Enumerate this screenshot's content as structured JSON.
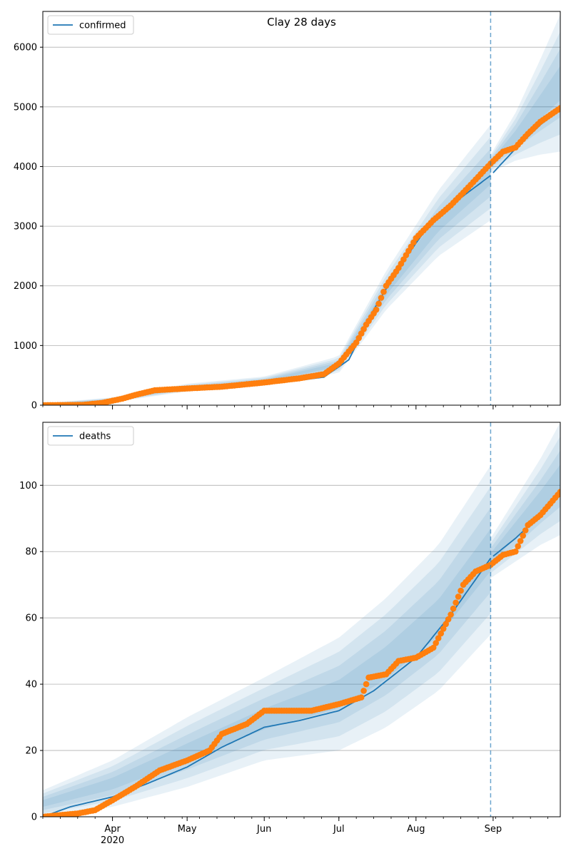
{
  "colors": {
    "model_line": "#1f77b4",
    "observed": "#ff7f0e",
    "band": "#1f77b4",
    "grid": "#b0b0b0",
    "vline": "#1f77b4"
  },
  "chart_data": [
    {
      "type": "line",
      "title": "Clay 28 days",
      "legend": [
        "confirmed"
      ],
      "legend_position": "top-left",
      "x_start": "2020-03-04",
      "x_end": "2020-09-28",
      "forecast_start": "2020-08-31",
      "xticks": [
        {
          "date": "2020-04-01",
          "label": "Apr",
          "sublabel": ""
        },
        {
          "date": "2020-05-01",
          "label": "May",
          "sublabel": ""
        },
        {
          "date": "2020-06-01",
          "label": "Jun",
          "sublabel": ""
        },
        {
          "date": "2020-07-01",
          "label": "Jul",
          "sublabel": ""
        },
        {
          "date": "2020-08-01",
          "label": "Aug",
          "sublabel": ""
        },
        {
          "date": "2020-09-01",
          "label": "Sep",
          "sublabel": ""
        }
      ],
      "show_xtick_labels": false,
      "ylim": [
        0,
        6600
      ],
      "yticks": [
        0,
        1000,
        2000,
        3000,
        4000,
        5000,
        6000
      ],
      "grid": true,
      "series": [
        {
          "name": "confirmed",
          "kind": "model",
          "x": [
            "2020-03-04",
            "2020-03-20",
            "2020-04-01",
            "2020-04-15",
            "2020-05-01",
            "2020-05-20",
            "2020-06-10",
            "2020-06-25",
            "2020-07-05",
            "2020-07-15",
            "2020-07-25",
            "2020-08-05",
            "2020-08-15",
            "2020-08-31",
            "2020-09-10",
            "2020-09-20",
            "2020-09-28"
          ],
          "y": [
            0,
            5,
            80,
            220,
            290,
            330,
            390,
            470,
            760,
            1600,
            2300,
            2950,
            3350,
            3850,
            4300,
            4700,
            4960
          ]
        },
        {
          "name": "observed",
          "kind": "observed",
          "x": [
            "2020-03-04",
            "2020-03-20",
            "2020-03-28",
            "2020-04-05",
            "2020-04-10",
            "2020-04-18",
            "2020-05-01",
            "2020-05-15",
            "2020-06-01",
            "2020-06-15",
            "2020-06-25",
            "2020-07-01",
            "2020-07-08",
            "2020-07-12",
            "2020-07-16",
            "2020-07-20",
            "2020-07-25",
            "2020-08-01",
            "2020-08-08",
            "2020-08-15",
            "2020-08-22",
            "2020-08-31",
            "2020-09-05",
            "2020-09-10",
            "2020-09-15",
            "2020-09-20",
            "2020-09-28"
          ],
          "y": [
            0,
            5,
            40,
            110,
            170,
            250,
            280,
            310,
            380,
            450,
            520,
            700,
            1050,
            1350,
            1600,
            2000,
            2300,
            2800,
            3100,
            3350,
            3650,
            4050,
            4250,
            4320,
            4550,
            4750,
            4980
          ]
        }
      ],
      "bands": [
        {
          "x": [
            "2020-03-04",
            "2020-04-01",
            "2020-05-01",
            "2020-06-01",
            "2020-07-01",
            "2020-07-20",
            "2020-08-10",
            "2020-08-31"
          ],
          "lo": [
            0,
            50,
            230,
            330,
            540,
            1600,
            2500,
            3100
          ],
          "hi": [
            30,
            130,
            360,
            480,
            820,
            2250,
            3600,
            4700
          ]
        },
        {
          "x": [
            "2020-08-31",
            "2020-09-10",
            "2020-09-20",
            "2020-09-28"
          ],
          "lo": [
            3900,
            4100,
            4200,
            4250
          ],
          "hi": [
            4200,
            4900,
            5800,
            6550
          ]
        }
      ]
    },
    {
      "type": "line",
      "title": "",
      "legend": [
        "deaths"
      ],
      "legend_position": "top-left",
      "x_start": "2020-03-04",
      "x_end": "2020-09-28",
      "forecast_start": "2020-08-31",
      "xticks": [
        {
          "date": "2020-04-01",
          "label": "Apr",
          "sublabel": "2020"
        },
        {
          "date": "2020-05-01",
          "label": "May",
          "sublabel": ""
        },
        {
          "date": "2020-06-01",
          "label": "Jun",
          "sublabel": ""
        },
        {
          "date": "2020-07-01",
          "label": "Jul",
          "sublabel": ""
        },
        {
          "date": "2020-08-01",
          "label": "Aug",
          "sublabel": ""
        },
        {
          "date": "2020-09-01",
          "label": "Sep",
          "sublabel": ""
        }
      ],
      "show_xtick_labels": true,
      "ylim": [
        0,
        119
      ],
      "yticks": [
        0,
        20,
        40,
        60,
        80,
        100
      ],
      "grid": true,
      "series": [
        {
          "name": "deaths",
          "kind": "model",
          "x": [
            "2020-03-04",
            "2020-03-15",
            "2020-04-01",
            "2020-04-15",
            "2020-05-01",
            "2020-05-15",
            "2020-06-01",
            "2020-06-15",
            "2020-07-01",
            "2020-07-15",
            "2020-08-01",
            "2020-08-15",
            "2020-08-31",
            "2020-09-10",
            "2020-09-20",
            "2020-09-28"
          ],
          "y": [
            0,
            3,
            6,
            10,
            15,
            21,
            27,
            29,
            32,
            38,
            48,
            61,
            78,
            84,
            91,
            97
          ]
        },
        {
          "name": "observed",
          "kind": "observed",
          "x": [
            "2020-03-04",
            "2020-03-18",
            "2020-03-25",
            "2020-04-01",
            "2020-04-10",
            "2020-04-20",
            "2020-05-01",
            "2020-05-10",
            "2020-05-15",
            "2020-05-25",
            "2020-06-01",
            "2020-06-10",
            "2020-06-20",
            "2020-07-01",
            "2020-07-10",
            "2020-07-13",
            "2020-07-20",
            "2020-07-25",
            "2020-08-01",
            "2020-08-08",
            "2020-08-15",
            "2020-08-20",
            "2020-08-25",
            "2020-08-31",
            "2020-09-05",
            "2020-09-10",
            "2020-09-15",
            "2020-09-20",
            "2020-09-28"
          ],
          "y": [
            0,
            1,
            2,
            5,
            9,
            14,
            17,
            20,
            25,
            28,
            32,
            32,
            32,
            34,
            36,
            42,
            43,
            47,
            48,
            51,
            61,
            70,
            74,
            76,
            79,
            80,
            88,
            91,
            98
          ]
        }
      ],
      "bands": [
        {
          "x": [
            "2020-03-04",
            "2020-04-01",
            "2020-05-01",
            "2020-06-01",
            "2020-07-01",
            "2020-07-20",
            "2020-08-10",
            "2020-08-31"
          ],
          "lo": [
            0,
            3,
            9,
            17,
            20,
            27,
            38,
            55
          ],
          "hi": [
            8,
            17,
            30,
            42,
            54,
            66,
            82,
            106
          ]
        },
        {
          "x": [
            "2020-08-31",
            "2020-09-10",
            "2020-09-20",
            "2020-09-28"
          ],
          "lo": [
            72,
            77,
            82,
            85
          ],
          "hi": [
            84,
            96,
            108,
            119
          ]
        }
      ]
    }
  ]
}
